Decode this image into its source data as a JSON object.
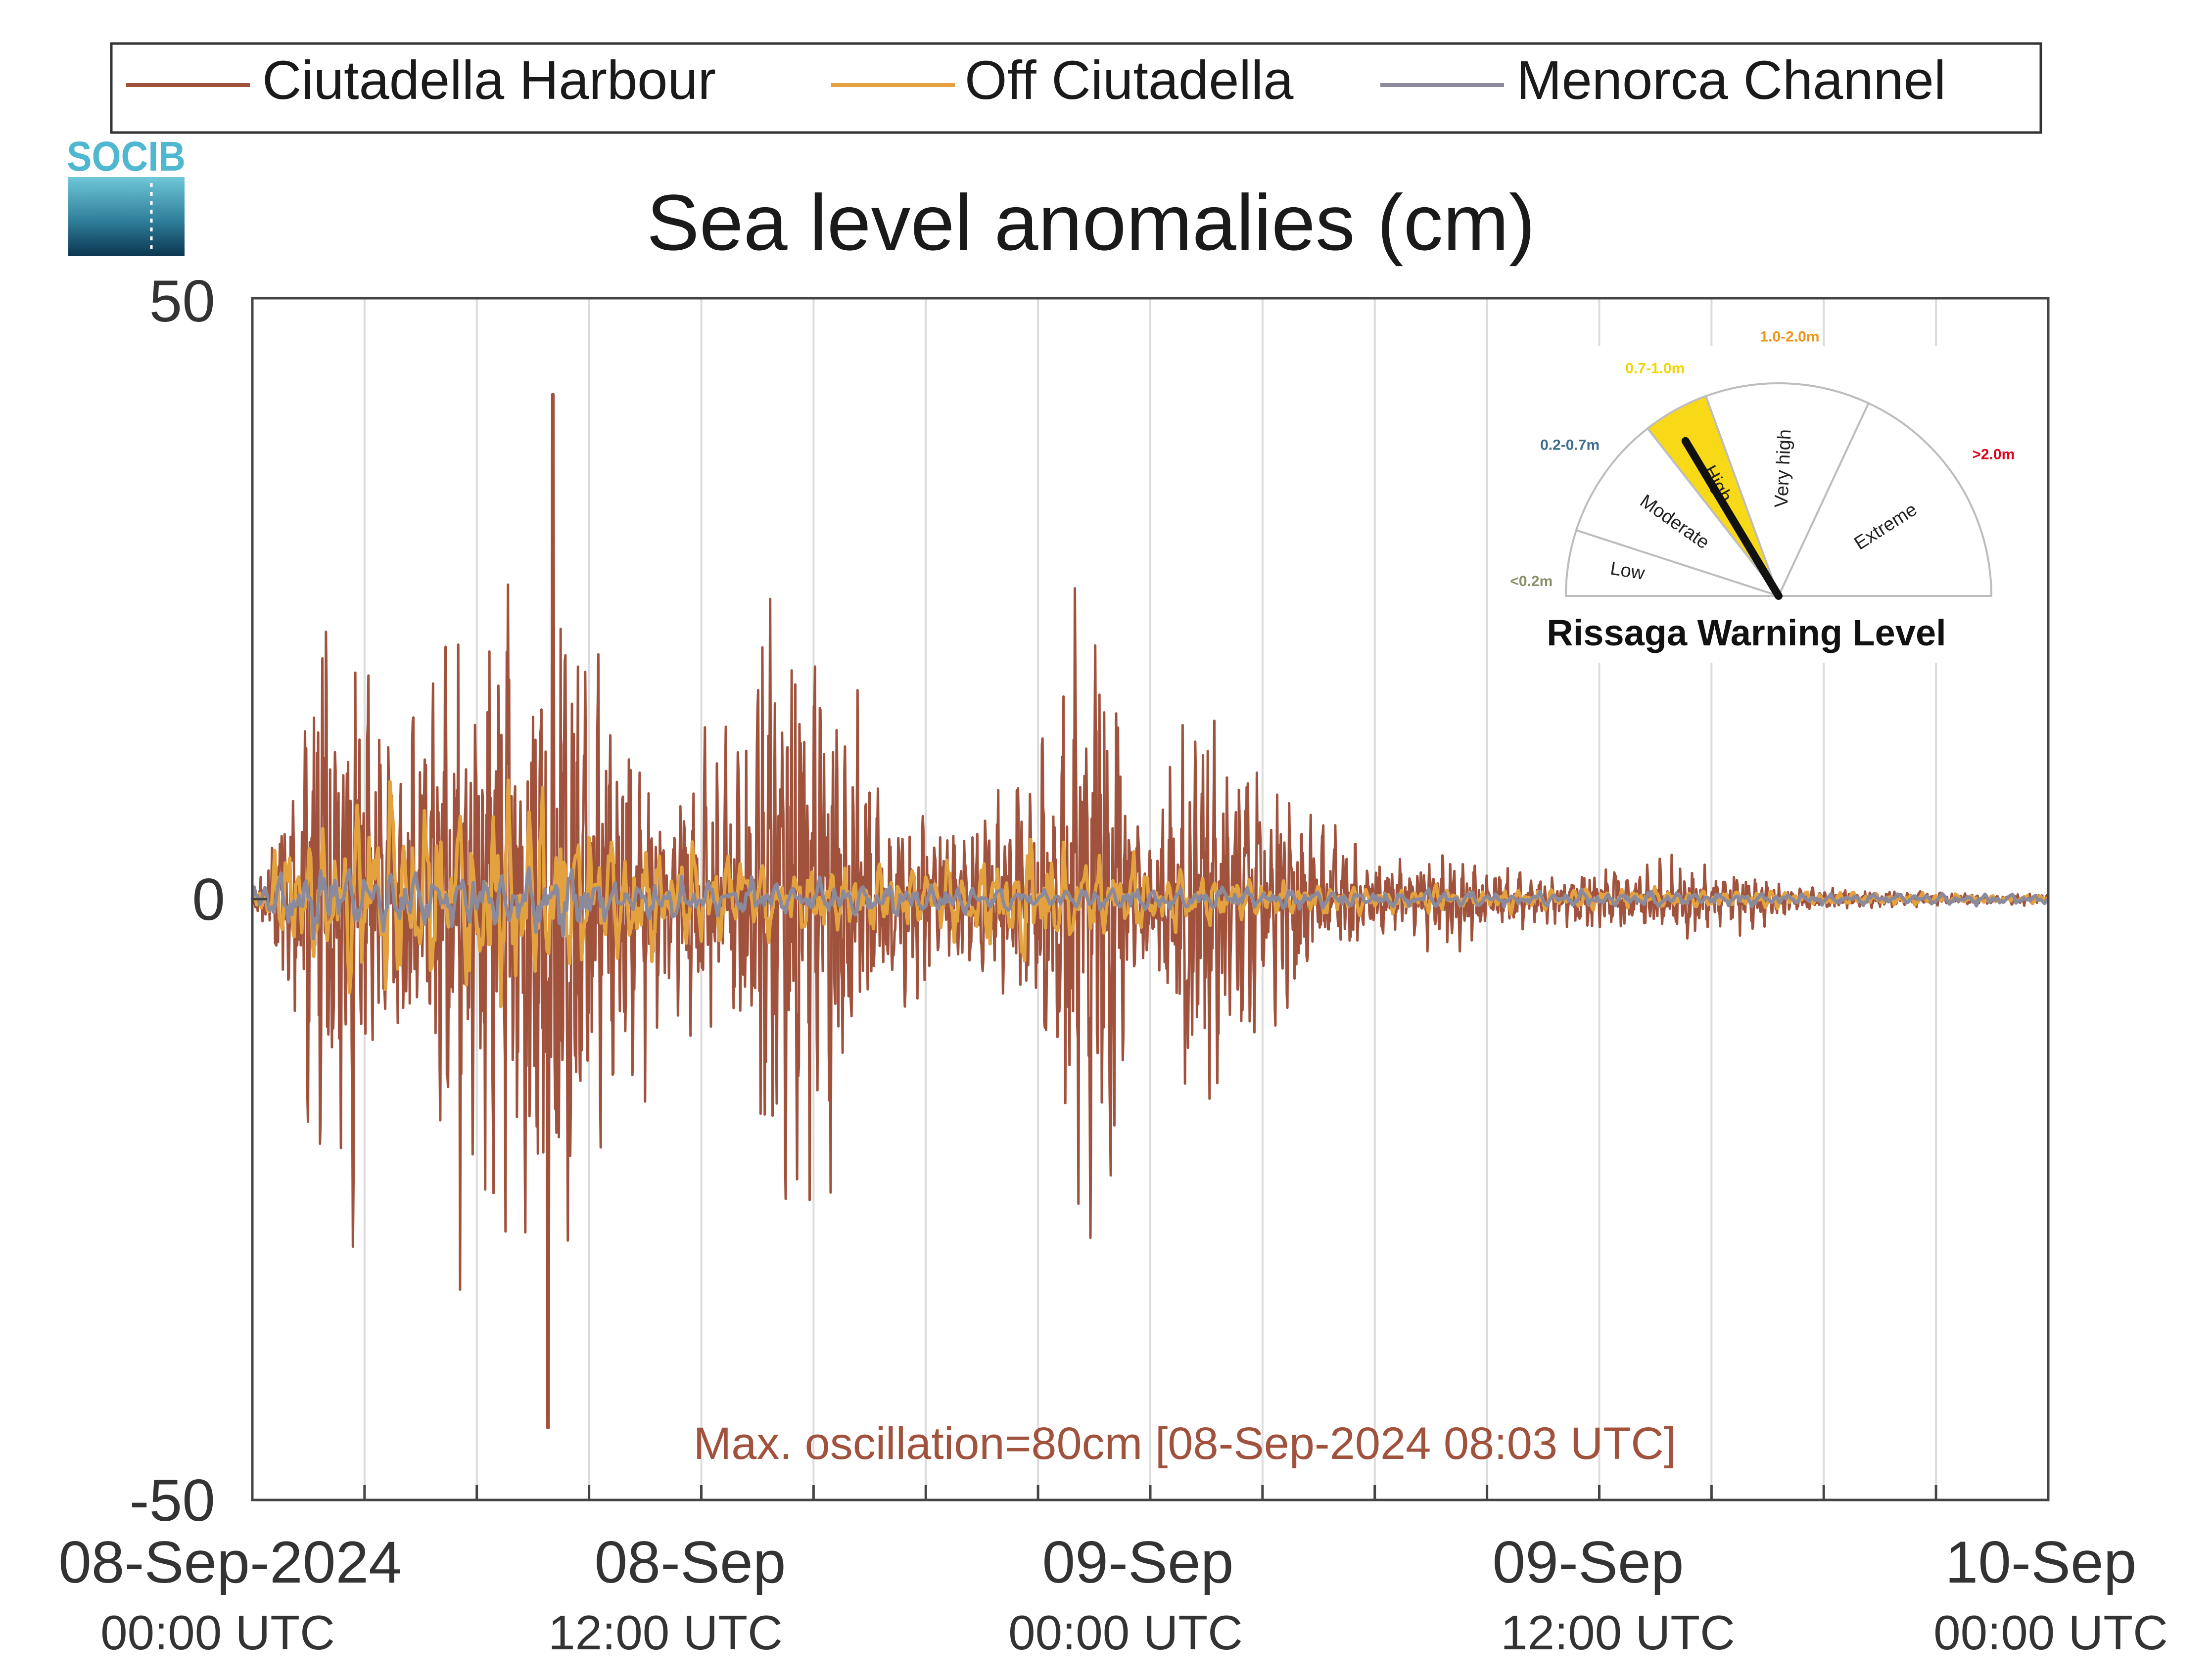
{
  "logo": {
    "text": "SOCIB"
  },
  "chart_data": {
    "type": "line",
    "title": "Sea level anomalies (cm)",
    "xlabel": "",
    "ylabel": "",
    "ylim": [
      -50,
      50
    ],
    "yticks": [
      50,
      0,
      -50
    ],
    "xlim_hours": [
      0,
      48
    ],
    "grid": "vertical",
    "legend_placement": "top",
    "xtick_labels": [
      {
        "date": "08-Sep-2024",
        "time": "00:00 UTC",
        "hour": 0
      },
      {
        "date": "08-Sep",
        "time": "12:00 UTC",
        "hour": 12
      },
      {
        "date": "09-Sep",
        "time": "00:00 UTC",
        "hour": 24
      },
      {
        "date": "09-Sep",
        "time": "12:00 UTC",
        "hour": 36
      },
      {
        "date": "10-Sep",
        "time": "00:00 UTC",
        "hour": 48
      }
    ],
    "series": [
      {
        "name": "Ciutadella Harbour",
        "color": "#a0523d",
        "envelope": [
          [
            0,
            1
          ],
          [
            0.5,
            4
          ],
          [
            1,
            12
          ],
          [
            1.5,
            22
          ],
          [
            2,
            30
          ],
          [
            3,
            22
          ],
          [
            4,
            15
          ],
          [
            5,
            25
          ],
          [
            6,
            28
          ],
          [
            7,
            34
          ],
          [
            8,
            40
          ],
          [
            8.5,
            36
          ],
          [
            9,
            22
          ],
          [
            10,
            18
          ],
          [
            11,
            12
          ],
          [
            12,
            14
          ],
          [
            13,
            18
          ],
          [
            13.5,
            24
          ],
          [
            14,
            32
          ],
          [
            15,
            28
          ],
          [
            16,
            18
          ],
          [
            17,
            10
          ],
          [
            18,
            9
          ],
          [
            19,
            7
          ],
          [
            20,
            10
          ],
          [
            21,
            14
          ],
          [
            22,
            30
          ],
          [
            23,
            30
          ],
          [
            23.5,
            10
          ],
          [
            24,
            6
          ],
          [
            25,
            20
          ],
          [
            26,
            16
          ],
          [
            27,
            14
          ],
          [
            28,
            9
          ],
          [
            29,
            6
          ],
          [
            30,
            4
          ],
          [
            31,
            3.5
          ],
          [
            32,
            4.5
          ],
          [
            33,
            3
          ],
          [
            34,
            2.5
          ],
          [
            35,
            2
          ],
          [
            36,
            3.5
          ],
          [
            37,
            3
          ],
          [
            38,
            3.5
          ],
          [
            39,
            3
          ],
          [
            40,
            2.8
          ],
          [
            41,
            1.5
          ],
          [
            42,
            1
          ],
          [
            44,
            0.8
          ],
          [
            46,
            0.5
          ],
          [
            48,
            0.6
          ]
        ],
        "peak_max": 42,
        "peak_min": -44
      },
      {
        "name": "Off Ciutadella",
        "color": "#e4a23e",
        "envelope": [
          [
            0,
            1
          ],
          [
            1,
            6
          ],
          [
            2,
            9
          ],
          [
            4,
            8
          ],
          [
            6,
            9
          ],
          [
            7,
            10
          ],
          [
            8,
            9
          ],
          [
            9,
            6
          ],
          [
            10,
            5
          ],
          [
            12,
            4
          ],
          [
            14,
            4
          ],
          [
            16,
            3
          ],
          [
            18,
            2.5
          ],
          [
            20,
            5
          ],
          [
            21,
            6
          ],
          [
            22,
            4
          ],
          [
            24,
            3
          ],
          [
            26,
            2
          ],
          [
            28,
            1.5
          ],
          [
            30,
            1.2
          ],
          [
            32,
            1
          ],
          [
            36,
            0.9
          ],
          [
            40,
            0.8
          ],
          [
            44,
            0.5
          ],
          [
            48,
            0.3
          ]
        ]
      },
      {
        "name": "Menorca Channel",
        "color": "#8a8a9c",
        "envelope": [
          [
            0,
            1
          ],
          [
            1,
            2.8
          ],
          [
            2,
            3
          ],
          [
            4,
            2.5
          ],
          [
            6,
            3
          ],
          [
            8,
            2.8
          ],
          [
            10,
            2
          ],
          [
            12,
            1.6
          ],
          [
            16,
            1.4
          ],
          [
            20,
            1.2
          ],
          [
            24,
            1
          ],
          [
            28,
            0.8
          ],
          [
            32,
            0.7
          ],
          [
            40,
            0.6
          ],
          [
            48,
            0.4
          ]
        ]
      }
    ],
    "annotation": "Max. oscillation=80cm [08-Sep-2024 08:03 UTC]"
  },
  "gauge": {
    "title": "Rissaga Warning Level",
    "needle_level": "High",
    "levels": [
      {
        "name": "Low",
        "range": "<0.2m",
        "range_color": "#8a8f6a"
      },
      {
        "name": "Moderate",
        "range": "0.2-0.7m",
        "range_color": "#3c6e8c"
      },
      {
        "name": "High",
        "range": "0.7-1.0m",
        "range_color": "#f2d400",
        "fill": "#f7d917"
      },
      {
        "name": "Very high",
        "range": "1.0-2.0m",
        "range_color": "#f0941c"
      },
      {
        "name": "Extreme",
        "range": ">2.0m",
        "range_color": "#e2001a"
      }
    ]
  }
}
